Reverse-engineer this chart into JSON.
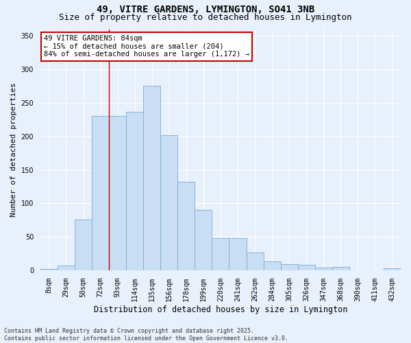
{
  "title1": "49, VITRE GARDENS, LYMINGTON, SO41 3NB",
  "title2": "Size of property relative to detached houses in Lymington",
  "xlabel": "Distribution of detached houses by size in Lymington",
  "ylabel": "Number of detached properties",
  "categories": [
    "8sqm",
    "29sqm",
    "50sqm",
    "72sqm",
    "93sqm",
    "114sqm",
    "135sqm",
    "156sqm",
    "178sqm",
    "199sqm",
    "220sqm",
    "241sqm",
    "262sqm",
    "284sqm",
    "305sqm",
    "326sqm",
    "347sqm",
    "368sqm",
    "390sqm",
    "411sqm",
    "432sqm"
  ],
  "values": [
    2,
    7,
    76,
    230,
    230,
    237,
    275,
    202,
    132,
    90,
    48,
    48,
    27,
    13,
    9,
    8,
    4,
    5,
    0,
    0,
    3
  ],
  "bar_color": "#c9ddf5",
  "bar_edge_color": "#7aadd4",
  "annotation_text": "49 VITRE GARDENS: 84sqm\n← 15% of detached houses are smaller (204)\n84% of semi-detached houses are larger (1,172) →",
  "annotation_box_color": "#ffffff",
  "annotation_box_edge_color": "#cc0000",
  "bg_color": "#e8f0fb",
  "grid_color": "#ffffff",
  "ylim": [
    0,
    360
  ],
  "yticks": [
    0,
    50,
    100,
    150,
    200,
    250,
    300,
    350
  ],
  "footer": "Contains HM Land Registry data © Crown copyright and database right 2025.\nContains public sector information licensed under the Open Government Licence v3.0.",
  "title_fontsize": 10,
  "subtitle_fontsize": 9,
  "tick_fontsize": 7,
  "ylabel_fontsize": 8,
  "xlabel_fontsize": 8.5,
  "annotation_fontsize": 7.5,
  "footer_fontsize": 6,
  "vline_x": 3.5,
  "vline_color": "#cc0000"
}
